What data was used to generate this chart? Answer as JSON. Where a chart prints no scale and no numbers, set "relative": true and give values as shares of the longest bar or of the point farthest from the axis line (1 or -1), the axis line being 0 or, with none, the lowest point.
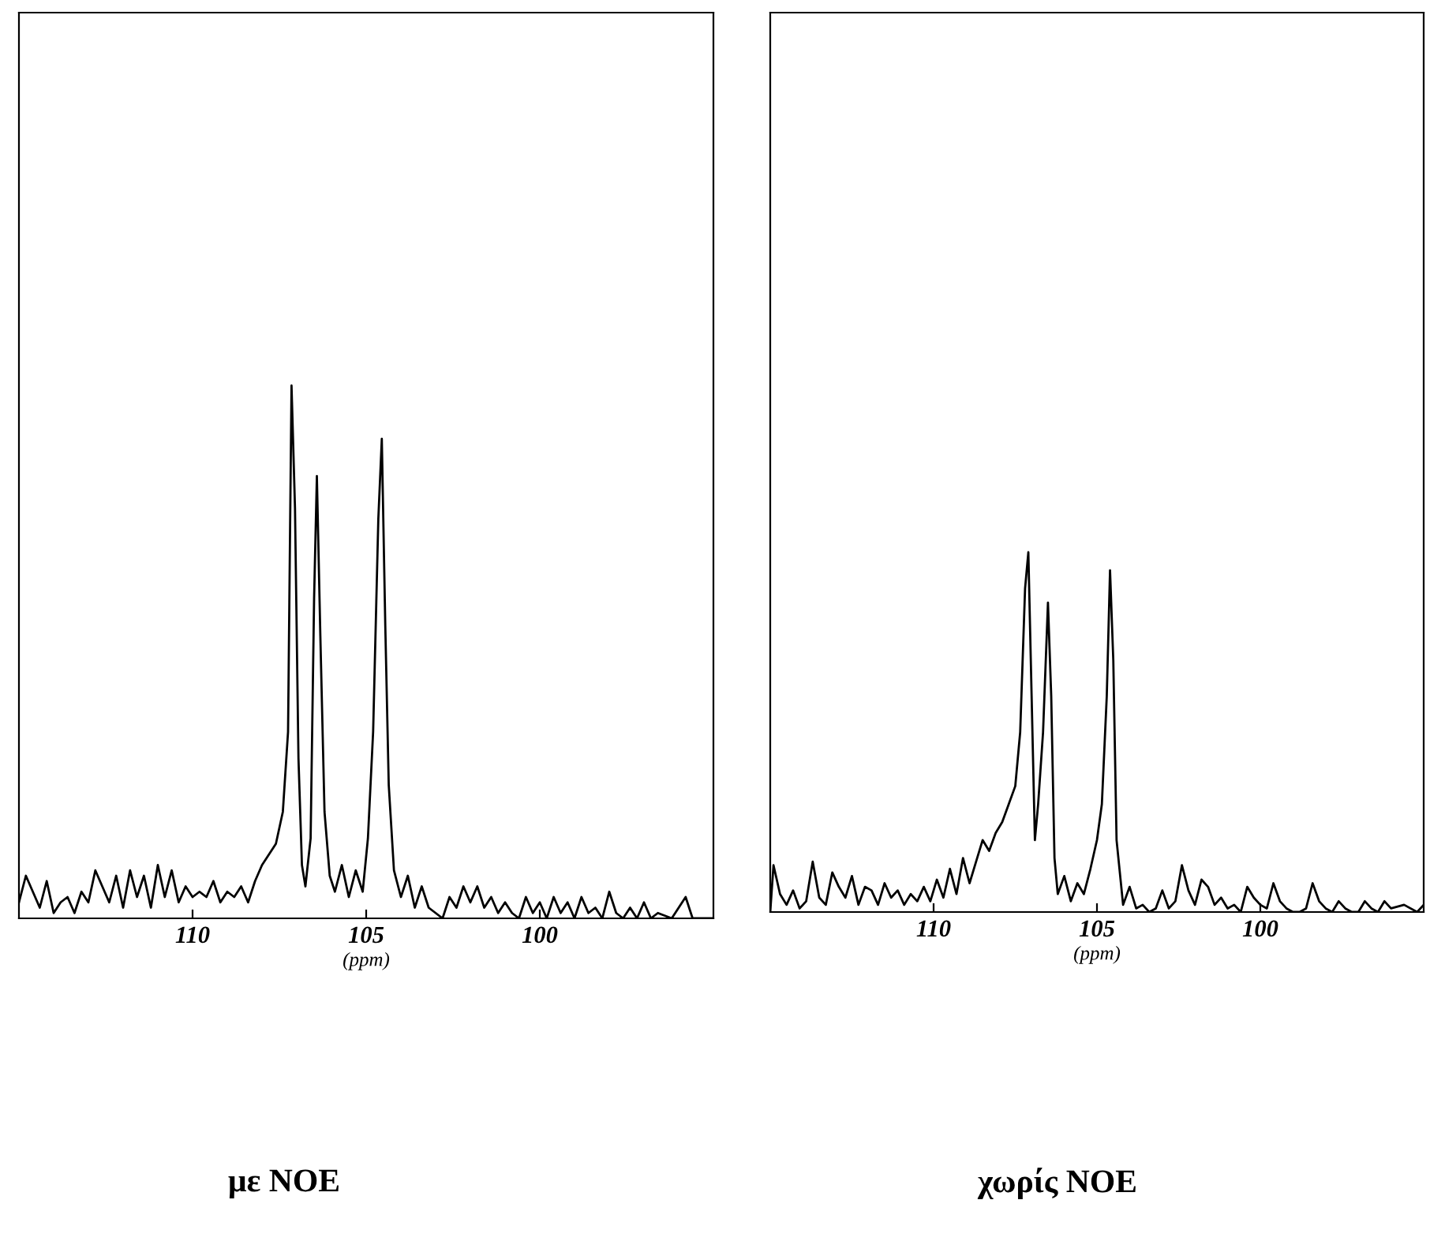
{
  "chart_data": [
    {
      "type": "line",
      "title": "με NOE",
      "xlabel": "(ppm)",
      "relative": true,
      "xlim": [
        115,
        95
      ],
      "xticks": [
        110,
        105,
        100
      ],
      "tick_labels": "x",
      "grid": false,
      "legend": false,
      "marker": "none",
      "line_style": "solid",
      "series": [
        {
          "color": "#000000",
          "x": [
            115.0,
            114.8,
            114.6,
            114.4,
            114.2,
            114.0,
            113.8,
            113.6,
            113.4,
            113.2,
            113.0,
            112.8,
            112.6,
            112.4,
            112.2,
            112.0,
            111.8,
            111.6,
            111.4,
            111.2,
            111.0,
            110.8,
            110.6,
            110.4,
            110.2,
            110.0,
            109.8,
            109.6,
            109.4,
            109.2,
            109.0,
            108.8,
            108.6,
            108.4,
            108.2,
            108.0,
            107.8,
            107.6,
            107.4,
            107.25,
            107.15,
            107.05,
            106.95,
            106.85,
            106.75,
            106.6,
            106.5,
            106.42,
            106.32,
            106.2,
            106.05,
            105.9,
            105.7,
            105.5,
            105.3,
            105.1,
            104.95,
            104.8,
            104.65,
            104.55,
            104.45,
            104.35,
            104.2,
            104.0,
            103.8,
            103.6,
            103.4,
            103.2,
            103.0,
            102.8,
            102.6,
            102.4,
            102.2,
            102.0,
            101.8,
            101.6,
            101.4,
            101.2,
            101.0,
            100.8,
            100.6,
            100.4,
            100.2,
            100.0,
            99.8,
            99.6,
            99.4,
            99.2,
            99.0,
            98.8,
            98.6,
            98.4,
            98.2,
            98.0,
            97.8,
            97.6,
            97.4,
            97.2,
            97.0,
            96.8,
            96.6,
            96.2,
            95.8,
            95.6,
            95.0
          ],
          "values": [
            0.03,
            0.08,
            0.05,
            0.02,
            0.07,
            0.01,
            0.03,
            0.04,
            0.01,
            0.05,
            0.03,
            0.09,
            0.06,
            0.03,
            0.08,
            0.02,
            0.09,
            0.04,
            0.08,
            0.02,
            0.1,
            0.04,
            0.09,
            0.03,
            0.06,
            0.04,
            0.05,
            0.04,
            0.07,
            0.03,
            0.05,
            0.04,
            0.06,
            0.03,
            0.07,
            0.1,
            0.12,
            0.14,
            0.2,
            0.35,
            1.0,
            0.77,
            0.3,
            0.1,
            0.06,
            0.15,
            0.6,
            0.83,
            0.53,
            0.2,
            0.08,
            0.05,
            0.1,
            0.04,
            0.09,
            0.05,
            0.15,
            0.35,
            0.75,
            0.9,
            0.55,
            0.25,
            0.09,
            0.04,
            0.08,
            0.02,
            0.06,
            0.02,
            0.01,
            0.0,
            0.04,
            0.02,
            0.06,
            0.03,
            0.06,
            0.02,
            0.04,
            0.01,
            0.03,
            0.01,
            0.0,
            0.04,
            0.01,
            0.03,
            0.0,
            0.04,
            0.01,
            0.03,
            0.0,
            0.04,
            0.01,
            0.02,
            0.0,
            0.05,
            0.01,
            0.0,
            0.02,
            0.0,
            0.03,
            0.0,
            0.01,
            0.0,
            0.04,
            0.0,
            0.0
          ]
        }
      ]
    },
    {
      "type": "line",
      "title": "χωρίς NOE",
      "xlabel": "(ppm)",
      "relative": true,
      "xlim": [
        115,
        95
      ],
      "xticks": [
        110,
        105,
        100
      ],
      "tick_labels": "x",
      "grid": false,
      "legend": false,
      "marker": "none",
      "line_style": "solid",
      "series": [
        {
          "color": "#000000",
          "x": [
            115.0,
            114.9,
            114.7,
            114.5,
            114.3,
            114.1,
            113.9,
            113.7,
            113.5,
            113.3,
            113.1,
            112.9,
            112.7,
            112.5,
            112.3,
            112.1,
            111.9,
            111.7,
            111.5,
            111.3,
            111.1,
            110.9,
            110.7,
            110.5,
            110.3,
            110.1,
            109.9,
            109.7,
            109.5,
            109.3,
            109.1,
            108.9,
            108.7,
            108.5,
            108.3,
            108.1,
            107.9,
            107.7,
            107.5,
            107.35,
            107.2,
            107.1,
            107.0,
            106.9,
            106.8,
            106.65,
            106.5,
            106.4,
            106.3,
            106.2,
            106.0,
            105.8,
            105.6,
            105.4,
            105.2,
            105.0,
            104.85,
            104.7,
            104.6,
            104.5,
            104.4,
            104.2,
            104.0,
            103.8,
            103.6,
            103.4,
            103.2,
            103.0,
            102.8,
            102.6,
            102.4,
            102.2,
            102.0,
            101.8,
            101.6,
            101.4,
            101.2,
            101.0,
            100.8,
            100.6,
            100.4,
            100.2,
            100.0,
            99.8,
            99.6,
            99.4,
            99.2,
            99.0,
            98.8,
            98.6,
            98.4,
            98.2,
            98.0,
            97.8,
            97.6,
            97.4,
            97.2,
            97.0,
            96.8,
            96.6,
            96.4,
            96.2,
            96.0,
            95.6,
            95.2,
            95.0
          ],
          "values": [
            0.0,
            0.13,
            0.05,
            0.02,
            0.06,
            0.01,
            0.03,
            0.14,
            0.04,
            0.02,
            0.11,
            0.07,
            0.04,
            0.1,
            0.02,
            0.07,
            0.06,
            0.02,
            0.08,
            0.04,
            0.06,
            0.02,
            0.05,
            0.03,
            0.07,
            0.03,
            0.09,
            0.04,
            0.12,
            0.05,
            0.15,
            0.08,
            0.14,
            0.2,
            0.17,
            0.22,
            0.25,
            0.3,
            0.35,
            0.5,
            0.9,
            1.0,
            0.6,
            0.2,
            0.3,
            0.5,
            0.86,
            0.6,
            0.15,
            0.05,
            0.1,
            0.03,
            0.08,
            0.05,
            0.12,
            0.2,
            0.3,
            0.6,
            0.95,
            0.7,
            0.2,
            0.02,
            0.07,
            0.01,
            0.02,
            0.0,
            0.01,
            0.06,
            0.01,
            0.03,
            0.13,
            0.06,
            0.02,
            0.09,
            0.07,
            0.02,
            0.04,
            0.01,
            0.02,
            0.0,
            0.07,
            0.04,
            0.02,
            0.01,
            0.08,
            0.03,
            0.01,
            0.0,
            0.0,
            0.01,
            0.08,
            0.03,
            0.01,
            0.0,
            0.03,
            0.01,
            0.0,
            0.0,
            0.03,
            0.01,
            0.0,
            0.03,
            0.01,
            0.02,
            0.0,
            0.02
          ]
        }
      ]
    }
  ]
}
